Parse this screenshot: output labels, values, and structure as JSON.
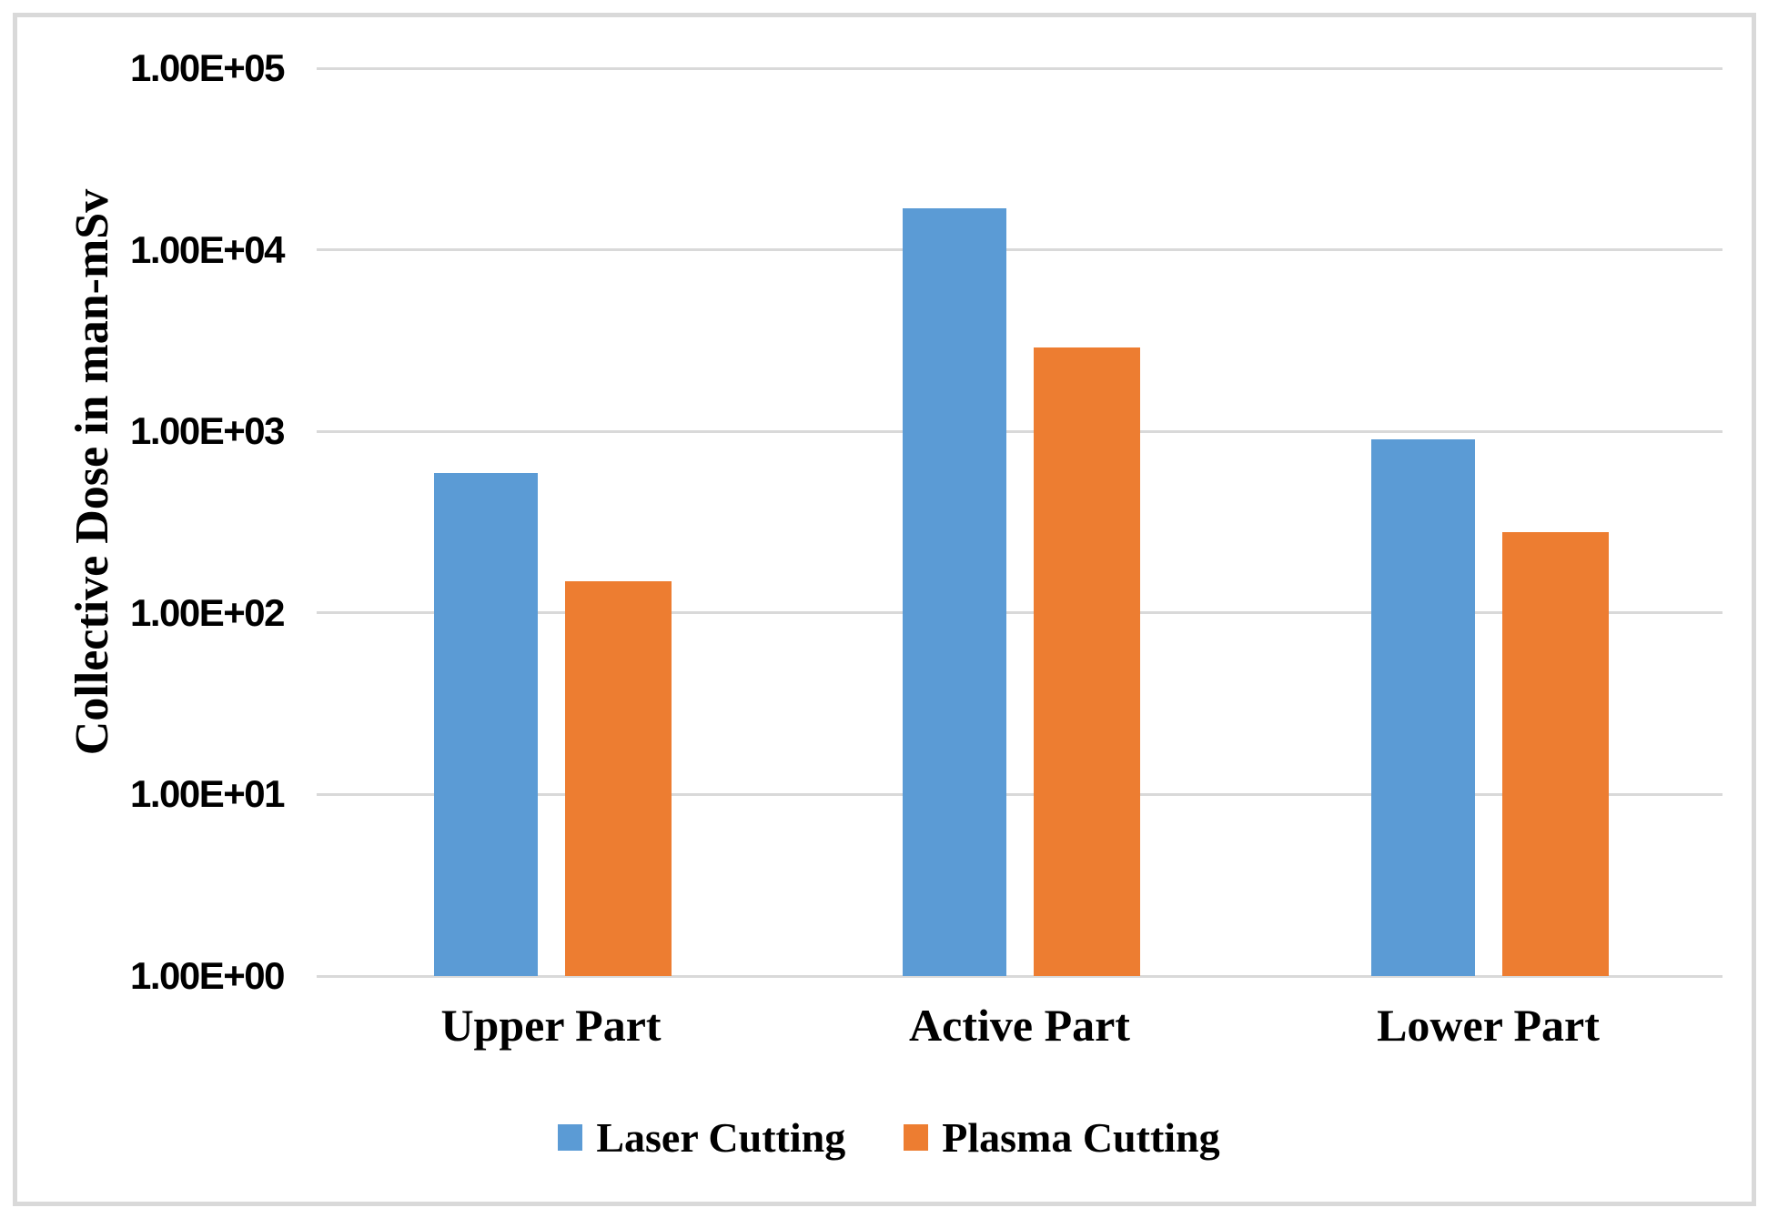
{
  "chart_data": {
    "type": "bar",
    "categories": [
      "Upper Part",
      "Active Part",
      "Lower Part"
    ],
    "series": [
      {
        "name": "Laser Cutting",
        "color": "#5B9BD5",
        "values": [
          590,
          17000,
          900
        ]
      },
      {
        "name": "Plasma Cutting",
        "color": "#ED7D31",
        "values": [
          150,
          2900,
          280
        ]
      }
    ],
    "title": "",
    "xlabel": "",
    "ylabel": "Collective Dose in man-mSv",
    "y_scale": "log",
    "ylim": [
      1,
      100000
    ],
    "y_ticks_top_to_bottom": [
      "1.00E+05",
      "1.00E+04",
      "1.00E+03",
      "1.00E+02",
      "1.00E+01",
      "1.00E+00"
    ],
    "grid": true,
    "gridline_color": "#D9D9D9",
    "legend_position": "bottom"
  },
  "colors": {
    "background": "#FFFFFF",
    "frame_border": "#D9D9D9",
    "text": "#000000"
  }
}
